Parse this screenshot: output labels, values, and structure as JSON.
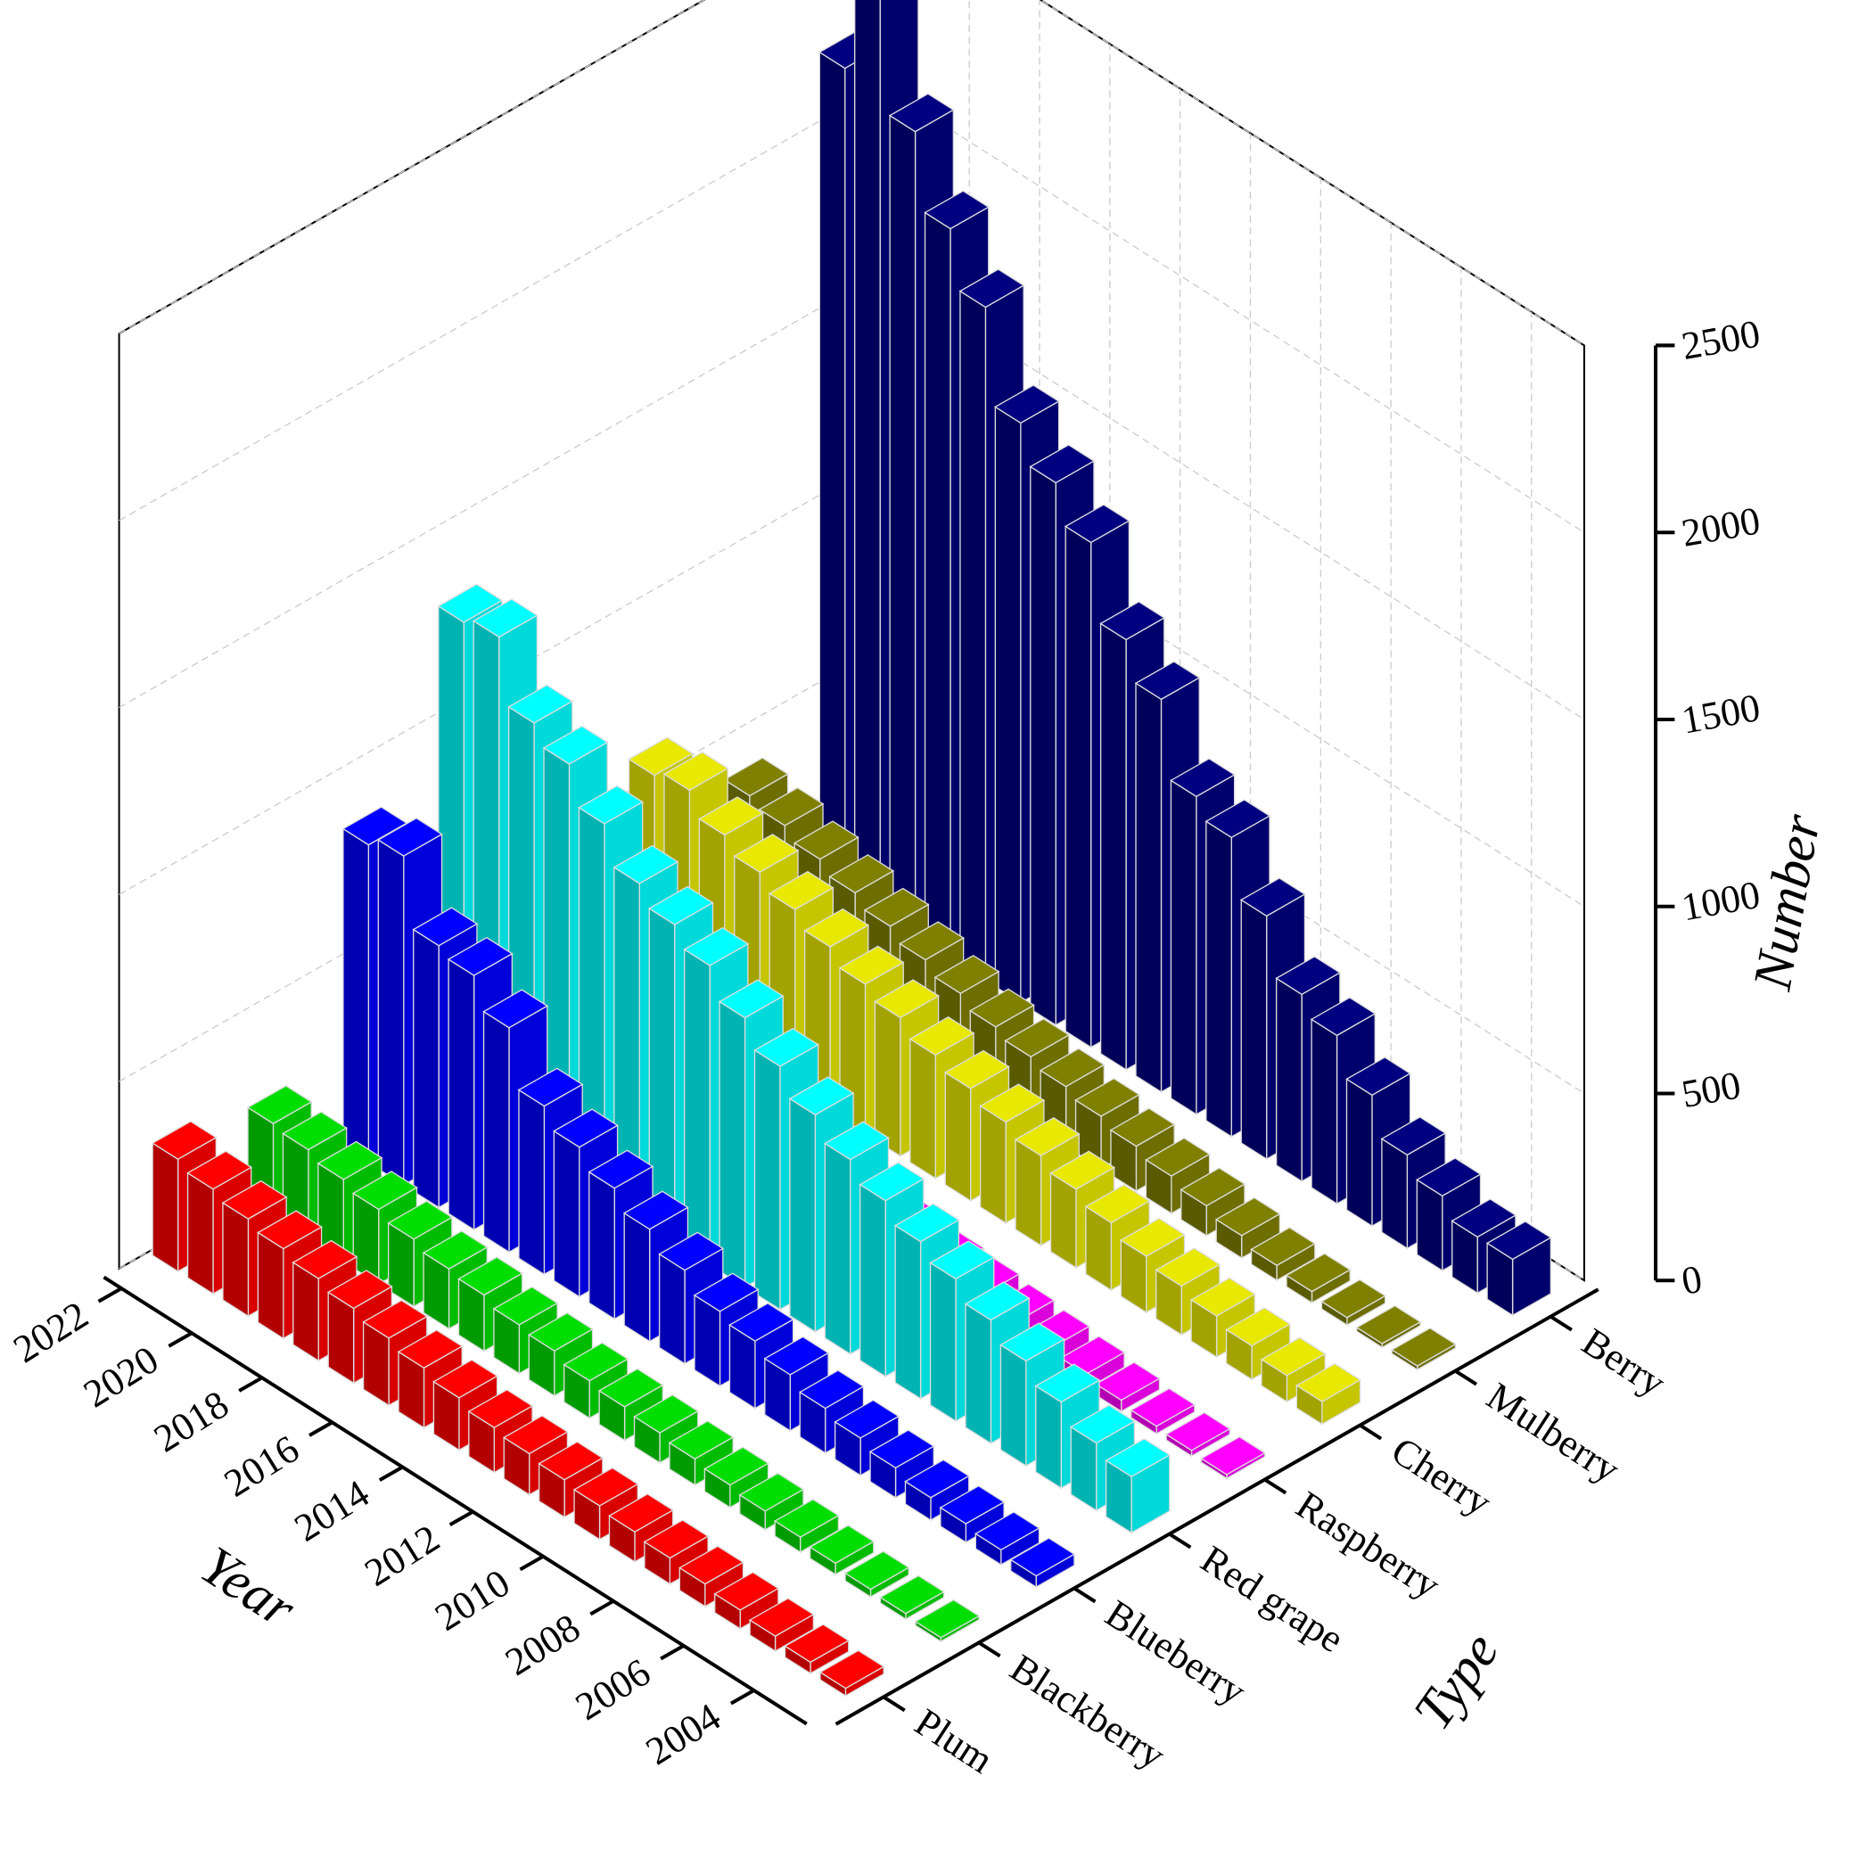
{
  "chart_data": {
    "type": "bar3d",
    "x_title": "Year",
    "category_title": "Type",
    "z_title": "Number",
    "x": [
      2003,
      2004,
      2005,
      2006,
      2007,
      2008,
      2009,
      2010,
      2011,
      2012,
      2013,
      2014,
      2015,
      2016,
      2017,
      2018,
      2019,
      2020,
      2021,
      2022
    ],
    "xlim": [
      2003,
      2022
    ],
    "xticks": [
      2004,
      2006,
      2008,
      2010,
      2012,
      2014,
      2016,
      2018,
      2020,
      2022
    ],
    "zlim": [
      0,
      2500
    ],
    "zticks": [
      0,
      500,
      1000,
      1500,
      2000,
      2500
    ],
    "grid": true,
    "series": [
      {
        "name": "Plum",
        "color": "#ff0000",
        "values": [
          20,
          30,
          40,
          50,
          60,
          70,
          80,
          90,
          100,
          110,
          120,
          140,
          160,
          180,
          200,
          220,
          240,
          260,
          280,
          300
        ]
      },
      {
        "name": "Blackberry",
        "color": "#00dd00",
        "values": [
          10,
          15,
          20,
          30,
          40,
          50,
          60,
          70,
          80,
          90,
          100,
          120,
          130,
          150,
          160,
          180,
          200,
          220,
          240,
          250
        ]
      },
      {
        "name": "Blueberry",
        "color": "#0000ff",
        "values": [
          30,
          40,
          50,
          60,
          80,
          100,
          120,
          150,
          180,
          200,
          250,
          300,
          350,
          400,
          450,
          600,
          680,
          700,
          880,
          850
        ]
      },
      {
        "name": "Red grape",
        "color": "#00ffff",
        "values": [
          150,
          180,
          230,
          280,
          330,
          380,
          420,
          470,
          520,
          580,
          650,
          720,
          800,
          850,
          900,
          1000,
          1100,
          1150,
          1320,
          1300
        ]
      },
      {
        "name": "Raspberry",
        "color": "#ff00ff",
        "values": [
          10,
          15,
          20,
          30,
          40,
          50,
          60,
          70,
          80,
          100,
          110,
          130,
          150,
          170,
          190,
          210,
          230,
          240,
          250,
          250
        ]
      },
      {
        "name": "Cherry",
        "color": "#e8e800",
        "values": [
          60,
          70,
          90,
          110,
          130,
          150,
          180,
          210,
          240,
          270,
          300,
          330,
          370,
          400,
          440,
          480,
          520,
          560,
          620,
          600
        ]
      },
      {
        "name": "Mulberry",
        "color": "#808000",
        "values": [
          10,
          10,
          20,
          30,
          40,
          60,
          80,
          100,
          120,
          140,
          160,
          180,
          200,
          230,
          260,
          290,
          320,
          350,
          380,
          400
        ]
      },
      {
        "name": "Berry",
        "color": "#000080",
        "values": [
          150,
          150,
          200,
          250,
          350,
          450,
          500,
          650,
          800,
          850,
          1050,
          1150,
          1350,
          1450,
          1550,
          1800,
          1950,
          2150,
          2450,
          2200
        ]
      }
    ]
  }
}
